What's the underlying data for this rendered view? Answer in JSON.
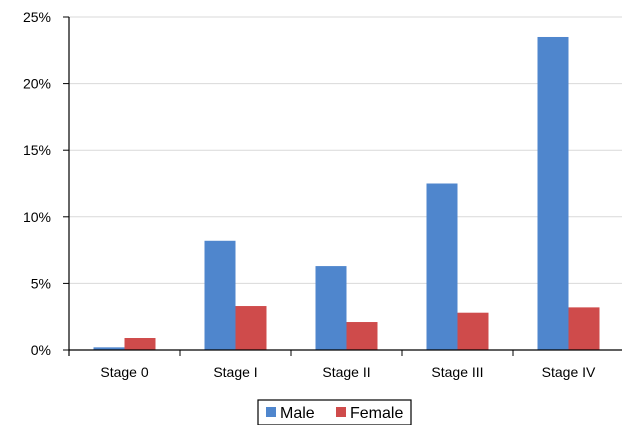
{
  "chart_data": {
    "type": "bar",
    "title": "",
    "xlabel": "",
    "ylabel": "",
    "categories": [
      "Stage 0",
      "Stage I",
      "Stage II",
      "Stage III",
      "Stage IV"
    ],
    "series": [
      {
        "name": "Male",
        "color": "#4F86CD",
        "values": [
          0.2,
          8.2,
          6.3,
          12.5,
          23.5
        ]
      },
      {
        "name": "Female",
        "color": "#CF4B4B",
        "values": [
          0.9,
          3.3,
          2.1,
          2.8,
          3.2
        ]
      }
    ],
    "ylim": [
      0,
      25
    ],
    "y_ticks": [
      "0%",
      "5%",
      "10%",
      "15%",
      "20%",
      "25%"
    ],
    "grid": true,
    "legend_position": "bottom"
  }
}
